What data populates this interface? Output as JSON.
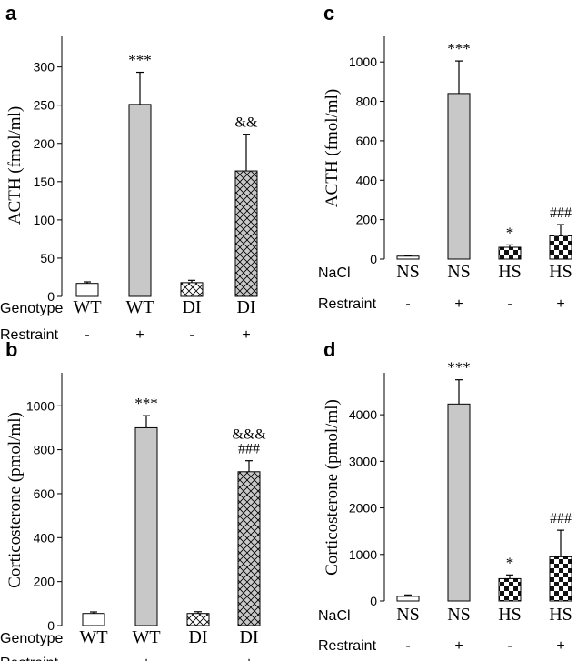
{
  "chart_data": [
    {
      "panel": "a",
      "type": "bar",
      "ylabel": "ACTH  (fmol/ml)",
      "ylim": [
        0,
        340
      ],
      "yticks": [
        0,
        50,
        100,
        150,
        200,
        250,
        300
      ],
      "factor_rows": [
        {
          "label": "Genotype",
          "values": [
            "WT",
            "WT",
            "DI",
            "DI"
          ]
        },
        {
          "label": "Restraint",
          "values": [
            "-",
            "+",
            "-",
            "+"
          ]
        }
      ],
      "values": [
        17,
        251,
        18,
        164
      ],
      "errors": [
        2,
        42,
        3,
        48
      ],
      "fills": [
        "white",
        "gray",
        "hatch",
        "hatch-gray"
      ],
      "annotations": [
        [],
        [
          "***"
        ],
        [],
        [
          "&&"
        ]
      ]
    },
    {
      "panel": "b",
      "type": "bar",
      "ylabel": "Corticosterone  (pmol/ml)",
      "ylim": [
        0,
        1150
      ],
      "yticks": [
        0,
        200,
        400,
        600,
        800,
        1000
      ],
      "factor_rows": [
        {
          "label": "Genotype",
          "values": [
            "WT",
            "WT",
            "DI",
            "DI"
          ]
        },
        {
          "label": "Restraint",
          "values": [
            "-",
            "+",
            "-",
            "+"
          ]
        }
      ],
      "values": [
        55,
        900,
        55,
        700
      ],
      "errors": [
        7,
        55,
        8,
        50
      ],
      "fills": [
        "white",
        "gray",
        "hatch",
        "hatch-gray"
      ],
      "annotations": [
        [],
        [
          "***"
        ],
        [],
        [
          "&&&",
          "###"
        ]
      ]
    },
    {
      "panel": "c",
      "type": "bar",
      "ylabel": "ACTH  (fmol/ml)",
      "ylim": [
        0,
        1130
      ],
      "yticks": [
        0,
        200,
        400,
        600,
        800,
        1000
      ],
      "factor_rows": [
        {
          "label": "NaCl",
          "values": [
            "NS",
            "NS",
            "HS",
            "HS"
          ]
        },
        {
          "label": "Restraint",
          "values": [
            "-",
            "+",
            "-",
            "+"
          ]
        }
      ],
      "values": [
        15,
        840,
        60,
        120
      ],
      "errors": [
        4,
        165,
        12,
        55
      ],
      "fills": [
        "white",
        "gray",
        "checker",
        "checker"
      ],
      "annotations": [
        [],
        [
          "***"
        ],
        [
          "*"
        ],
        [
          "###"
        ]
      ]
    },
    {
      "panel": "d",
      "type": "bar",
      "ylabel": "Corticosterone (pmol/ml)",
      "ylim": [
        0,
        4900
      ],
      "yticks": [
        0,
        1000,
        2000,
        3000,
        4000
      ],
      "factor_rows": [
        {
          "label": "NaCl",
          "values": [
            "NS",
            "NS",
            "HS",
            "HS"
          ]
        },
        {
          "label": "Restraint",
          "values": [
            "-",
            "+",
            "-",
            "+"
          ]
        }
      ],
      "values": [
        100,
        4230,
        480,
        950
      ],
      "errors": [
        30,
        520,
        80,
        570
      ],
      "fills": [
        "white",
        "gray",
        "checker",
        "checker"
      ],
      "annotations": [
        [],
        [
          "***"
        ],
        [
          "*"
        ],
        [
          "###"
        ]
      ]
    }
  ]
}
